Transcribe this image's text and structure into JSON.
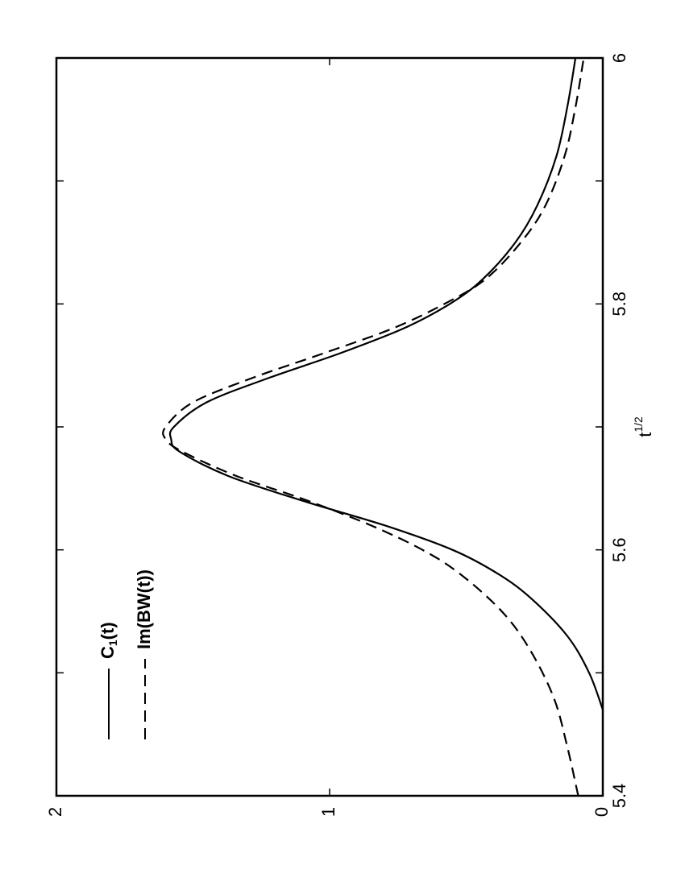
{
  "chart_data": {
    "type": "line",
    "orientation": "rotated-90-ccw",
    "xlabel": "t",
    "xlabel_superscript": "1/2",
    "ylabel": "",
    "xlim": [
      5.4,
      6.0
    ],
    "ylim": [
      0,
      2
    ],
    "x_ticks": [
      5.4,
      5.5,
      5.6,
      5.7,
      5.8,
      5.9,
      6.0
    ],
    "x_tick_labels": [
      "5.4",
      "",
      "5.6",
      "",
      "5.8",
      "",
      "6"
    ],
    "y_ticks": [
      0,
      1,
      2
    ],
    "y_tick_labels": [
      "0",
      "1",
      "2"
    ],
    "grid": false,
    "legend_position": "top-left",
    "series": [
      {
        "name": "C1(t)",
        "legend_main": "C",
        "legend_sub": "1",
        "legend_rest": "(t)",
        "style": "solid",
        "color": "#000000",
        "x": [
          5.47,
          5.5,
          5.53,
          5.56,
          5.58,
          5.6,
          5.62,
          5.64,
          5.66,
          5.68,
          5.69,
          5.7,
          5.72,
          5.74,
          5.76,
          5.78,
          5.8,
          5.82,
          5.85,
          5.88,
          5.92,
          5.96,
          6.0
        ],
        "y": [
          0.0,
          0.05,
          0.13,
          0.26,
          0.38,
          0.55,
          0.8,
          1.1,
          1.37,
          1.55,
          1.58,
          1.57,
          1.45,
          1.22,
          0.96,
          0.73,
          0.56,
          0.44,
          0.32,
          0.24,
          0.17,
          0.13,
          0.1
        ]
      },
      {
        "name": "Im(BW(t))",
        "legend_main": "Im(BW(t))",
        "style": "dashed",
        "color": "#000000",
        "x": [
          5.4,
          5.44,
          5.48,
          5.52,
          5.55,
          5.58,
          5.6,
          5.62,
          5.64,
          5.66,
          5.68,
          5.69,
          5.7,
          5.72,
          5.74,
          5.76,
          5.78,
          5.8,
          5.82,
          5.85,
          5.88,
          5.92,
          5.96,
          6.0
        ],
        "y": [
          0.09,
          0.13,
          0.18,
          0.27,
          0.37,
          0.52,
          0.66,
          0.85,
          1.08,
          1.34,
          1.54,
          1.6,
          1.6,
          1.5,
          1.28,
          1.02,
          0.77,
          0.58,
          0.43,
          0.3,
          0.21,
          0.14,
          0.1,
          0.07
        ]
      }
    ]
  }
}
